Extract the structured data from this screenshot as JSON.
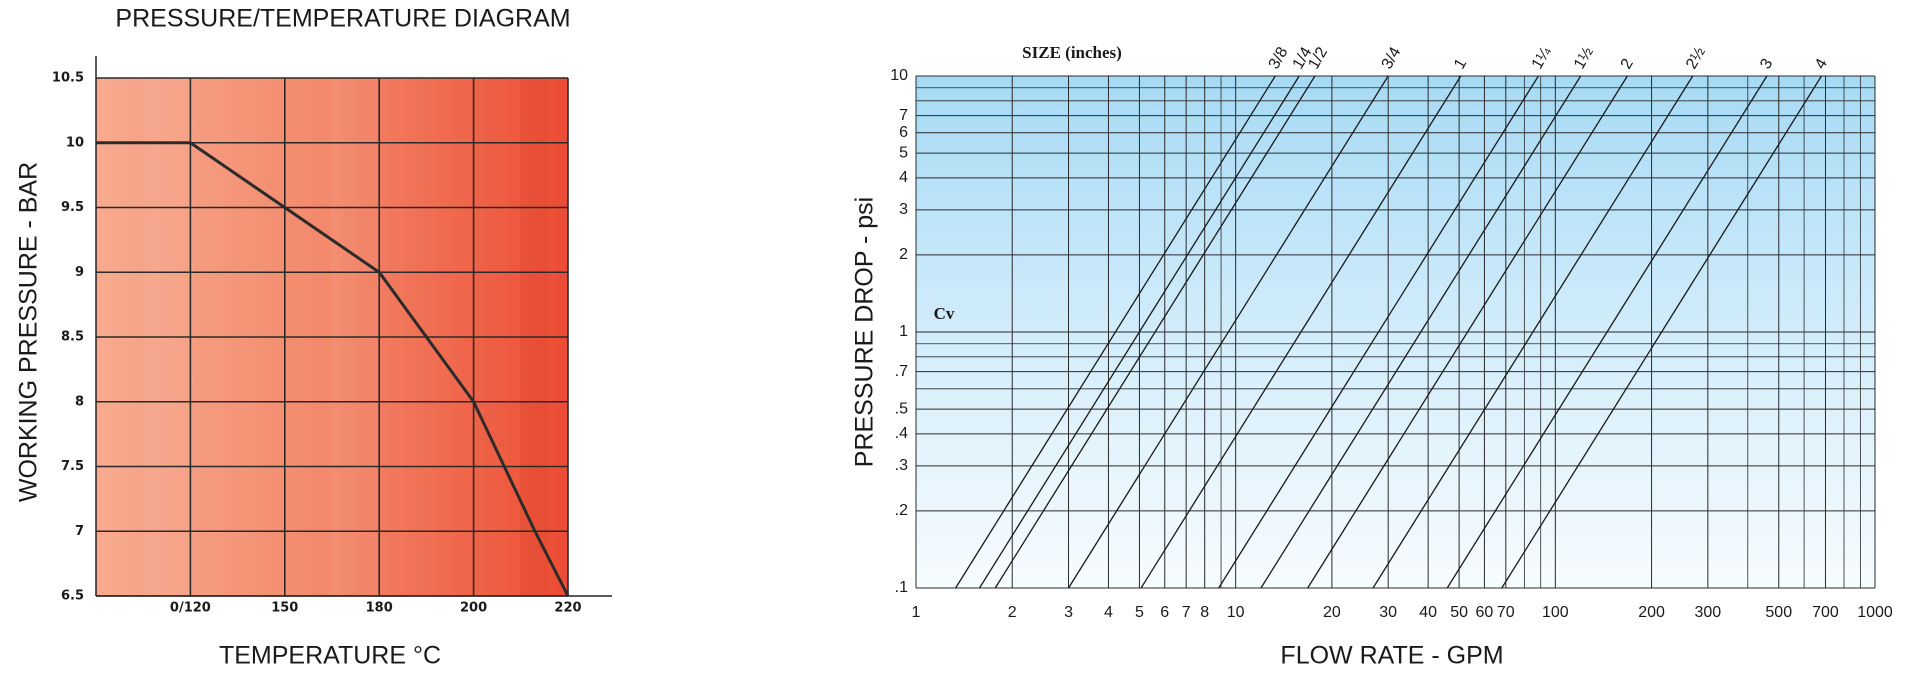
{
  "chart_data": [
    {
      "type": "line",
      "title": "PRESSURE/TEMPERATURE DIAGRAM",
      "x_label": "TEMPERATURE °C",
      "y_label": "WORKING PRESSURE - BAR",
      "x": [
        90,
        120,
        150,
        180,
        200,
        213,
        220
      ],
      "values": [
        10,
        10,
        9.5,
        9,
        8,
        7,
        6.5
      ],
      "color": "#2b2b2b",
      "xlim": [
        90,
        220
      ],
      "xticks": [
        {
          "value": 120,
          "label": "0/120"
        },
        150,
        180,
        200,
        220
      ],
      "xspacing": "even",
      "ylim": [
        6.5,
        10.5
      ],
      "yticks": [
        6.5,
        7,
        7.5,
        8,
        8.5,
        9,
        9.5,
        10,
        10.5
      ],
      "grid": true
    },
    {
      "type": "line",
      "x_label": "FLOW RATE - GPM",
      "y_label": "PRESSURE DROP - psi",
      "annotations": [
        "SIZE  (inches)",
        "Cv"
      ],
      "xscale": "log",
      "yscale": "log",
      "xlim": [
        1,
        1000
      ],
      "xticks": [
        1,
        2,
        3,
        4,
        5,
        6,
        7,
        8,
        10,
        20,
        30,
        40,
        50,
        60,
        70,
        100,
        200,
        300,
        500,
        700,
        1000
      ],
      "xminor": [
        9,
        80,
        90,
        400,
        600,
        800,
        900
      ],
      "ylim": [
        0.1,
        10
      ],
      "yticks": [
        {
          "value": 0.1,
          "label": ".1"
        },
        {
          "value": 0.2,
          "label": ".2"
        },
        {
          "value": 0.3,
          "label": ".3"
        },
        {
          "value": 0.4,
          "label": ".4"
        },
        {
          "value": 0.5,
          "label": ".5"
        },
        {
          "value": 0.7,
          "label": ".7"
        },
        1,
        2,
        3,
        4,
        5,
        6,
        7,
        10
      ],
      "yminor": [
        0.6,
        0.8,
        0.9,
        8,
        9
      ],
      "grid": true,
      "series": [
        {
          "name": "3/8",
          "color": "#1a1a1a",
          "x": [
            1.33,
            13.3
          ],
          "values": [
            0.1,
            10
          ]
        },
        {
          "name": "1/4",
          "color": "#1a1a1a",
          "x": [
            1.58,
            15.8
          ],
          "values": [
            0.1,
            10
          ]
        },
        {
          "name": "1/2",
          "color": "#1a1a1a",
          "x": [
            1.77,
            17.7
          ],
          "values": [
            0.1,
            10
          ]
        },
        {
          "name": "3/4",
          "color": "#1a1a1a",
          "x": [
            3.0,
            30
          ],
          "values": [
            0.1,
            10
          ]
        },
        {
          "name": "1",
          "color": "#1a1a1a",
          "x": [
            5.06,
            50.6
          ],
          "values": [
            0.1,
            10
          ]
        },
        {
          "name": "1¼",
          "color": "#1a1a1a",
          "x": [
            8.85,
            88.5
          ],
          "values": [
            0.1,
            10
          ]
        },
        {
          "name": "1½",
          "color": "#1a1a1a",
          "x": [
            12.0,
            120
          ],
          "values": [
            0.1,
            10
          ]
        },
        {
          "name": "2",
          "color": "#1a1a1a",
          "x": [
            16.8,
            168
          ],
          "values": [
            0.1,
            10
          ]
        },
        {
          "name": "2½",
          "color": "#1a1a1a",
          "x": [
            26.9,
            269
          ],
          "values": [
            0.1,
            10
          ]
        },
        {
          "name": "3",
          "color": "#1a1a1a",
          "x": [
            45.9,
            459
          ],
          "values": [
            0.1,
            10
          ]
        },
        {
          "name": "4",
          "color": "#1a1a1a",
          "x": [
            68,
            680
          ],
          "values": [
            0.1,
            10
          ]
        }
      ]
    }
  ]
}
